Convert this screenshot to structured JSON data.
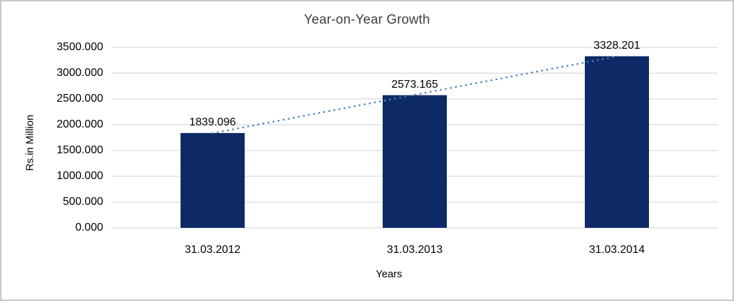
{
  "chart_data": {
    "type": "bar",
    "title": "Year-on-Year Growth",
    "xlabel": "Years",
    "ylabel": "Rs.in Million",
    "categories": [
      "31.03.2012",
      "31.03.2013",
      "31.03.2014"
    ],
    "values": [
      1839.096,
      2573.165,
      3328.201
    ],
    "value_labels": [
      "1839.096",
      "2573.165",
      "3328.201"
    ],
    "ylim": [
      0,
      3500
    ],
    "ytick_step": 500,
    "ytick_labels": [
      "0.000",
      "500.000",
      "1000.000",
      "1500.000",
      "2000.000",
      "2500.000",
      "3000.000",
      "3500.000"
    ],
    "grid": true,
    "legend": "none",
    "colors": {
      "bar": "#0d2a66",
      "trendline": "#4f81bd",
      "gridline": "#d9d9d9",
      "title_text": "#3f3f3f",
      "axis_text": "#000000",
      "frame_border": "#c7c7c7",
      "background": "#ffffff"
    },
    "trendline": {
      "type": "linear",
      "style": "dotted"
    }
  }
}
